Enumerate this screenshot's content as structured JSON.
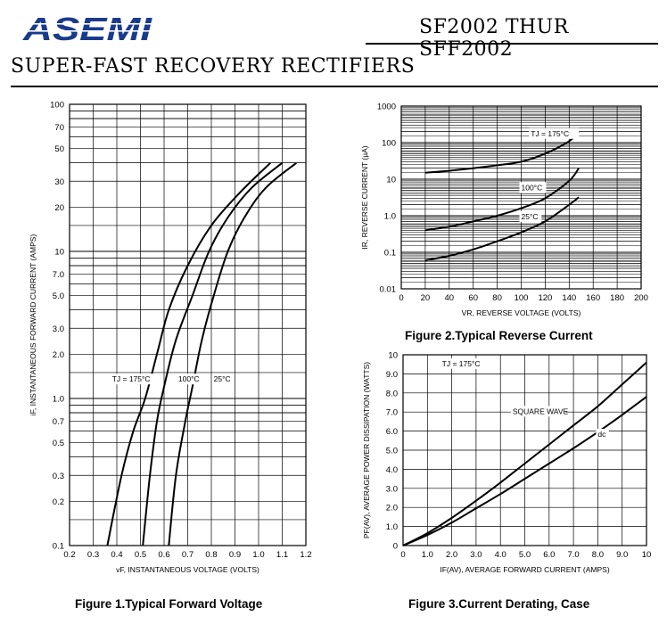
{
  "header": {
    "logo_text": "ASEMI",
    "part_range": "SF2002 THUR SFF2002",
    "subtitle": "SUPER-FAST RECOVERY RECTIFIERS"
  },
  "colors": {
    "logo": "#1a3a8c",
    "lines": "#000000"
  },
  "figures": {
    "fig1_caption": "Figure 1.Typical  Forward  Voltage",
    "fig2_caption": "Figure 2.Typical  Reverse  Current",
    "fig3_caption": "Figure 3.Current  Derating,  Case"
  },
  "chart_data": [
    {
      "type": "line",
      "scale": {
        "x": "linear",
        "y": "log"
      },
      "xlabel": "vF, INSTANTANEOUS VOLTAGE (VOLTS)",
      "ylabel": "iF, INSTANTANEOUS FORWARD CURRENT (AMPS)",
      "xlim": [
        0.2,
        1.2
      ],
      "ylim": [
        0.1,
        100
      ],
      "xticks": [
        "0.2",
        "0.3",
        "0.4",
        "0.5",
        "0.6",
        "0.7",
        "0.8",
        "0.9",
        "1.0",
        "1.1",
        "1.2"
      ],
      "yticks": [
        "0.1",
        "0.2",
        "0.3",
        "0.5",
        "0.7",
        "1.0",
        "2.0",
        "3.0",
        "5.0",
        "7.0",
        "10",
        "20",
        "30",
        "50",
        "70",
        "100"
      ],
      "grid": true,
      "series": [
        {
          "name": "TJ = 175°C",
          "points": [
            [
              0.36,
              0.1
            ],
            [
              0.42,
              0.3
            ],
            [
              0.47,
              0.6
            ],
            [
              0.52,
              1.0
            ],
            [
              0.57,
              2.0
            ],
            [
              0.62,
              4.0
            ],
            [
              0.7,
              8.0
            ],
            [
              0.8,
              15
            ],
            [
              0.92,
              25
            ],
            [
              1.05,
              40
            ]
          ]
        },
        {
          "name": "100°C",
          "points": [
            [
              0.51,
              0.1
            ],
            [
              0.54,
              0.3
            ],
            [
              0.57,
              0.7
            ],
            [
              0.6,
              1.2
            ],
            [
              0.65,
              2.5
            ],
            [
              0.72,
              5.0
            ],
            [
              0.79,
              10
            ],
            [
              0.87,
              17
            ],
            [
              0.97,
              27
            ],
            [
              1.1,
              40
            ]
          ]
        },
        {
          "name": "25°C",
          "points": [
            [
              0.62,
              0.1
            ],
            [
              0.65,
              0.3
            ],
            [
              0.69,
              0.7
            ],
            [
              0.72,
              1.2
            ],
            [
              0.76,
              2.5
            ],
            [
              0.81,
              5.0
            ],
            [
              0.87,
              10
            ],
            [
              0.94,
              17
            ],
            [
              1.03,
              27
            ],
            [
              1.16,
              40
            ]
          ]
        }
      ],
      "annotations": [
        {
          "text": "TJ = 175°C",
          "x": 0.38,
          "y": 1.3
        },
        {
          "text": "100°C",
          "x": 0.66,
          "y": 1.3
        },
        {
          "text": "25°C",
          "x": 0.81,
          "y": 1.3
        }
      ]
    },
    {
      "type": "line",
      "scale": {
        "x": "linear",
        "y": "log"
      },
      "xlabel": "VR, REVERSE VOLTAGE (VOLTS)",
      "ylabel": "IR, REVERSE CURRENT (µA)",
      "xlim": [
        0,
        200
      ],
      "ylim": [
        0.01,
        1000
      ],
      "xticks": [
        "0",
        "20",
        "40",
        "60",
        "80",
        "100",
        "120",
        "140",
        "160",
        "180",
        "200"
      ],
      "yticks": [
        "0.01",
        "0.1",
        "1.0",
        "10",
        "100",
        "1000"
      ],
      "grid": true,
      "series": [
        {
          "name": "TJ = 175°C",
          "points": [
            [
              20,
              15
            ],
            [
              40,
              17
            ],
            [
              60,
              20
            ],
            [
              80,
              24
            ],
            [
              100,
              30
            ],
            [
              120,
              50
            ],
            [
              140,
              110
            ],
            [
              148,
              200
            ]
          ]
        },
        {
          "name": "100°C",
          "points": [
            [
              20,
              0.4
            ],
            [
              40,
              0.5
            ],
            [
              60,
              0.7
            ],
            [
              80,
              1.0
            ],
            [
              100,
              1.6
            ],
            [
              120,
              3.0
            ],
            [
              140,
              9.0
            ],
            [
              148,
              20
            ]
          ]
        },
        {
          "name": "25°C",
          "points": [
            [
              20,
              0.06
            ],
            [
              40,
              0.08
            ],
            [
              60,
              0.12
            ],
            [
              80,
              0.2
            ],
            [
              100,
              0.35
            ],
            [
              120,
              0.7
            ],
            [
              140,
              2.0
            ],
            [
              148,
              3.2
            ]
          ]
        }
      ],
      "annotations": [
        {
          "text": "TJ = 175°C",
          "x": 108,
          "y": 150
        },
        {
          "text": "100°C",
          "x": 100,
          "y": 5
        },
        {
          "text": "25°C",
          "x": 100,
          "y": 0.8
        }
      ]
    },
    {
      "type": "line",
      "scale": {
        "x": "linear",
        "y": "linear"
      },
      "xlabel": "IF(AV), AVERAGE FORWARD CURRENT (AMPS)",
      "ylabel": "PF(AV), AVERAGE POWER DISSIPATION (WATTS)",
      "xlim": [
        0,
        10
      ],
      "ylim": [
        0,
        10
      ],
      "xticks": [
        "0",
        "1.0",
        "2.0",
        "3.0",
        "4.0",
        "5.0",
        "6.0",
        "7.0",
        "8.0",
        "9.0",
        "10"
      ],
      "yticks": [
        "0",
        "1.0",
        "2.0",
        "3.0",
        "4.0",
        "5.0",
        "6.0",
        "7.0",
        "8.0",
        "9.0",
        "10"
      ],
      "grid": true,
      "series": [
        {
          "name": "SQUARE WAVE",
          "points": [
            [
              0,
              0
            ],
            [
              1,
              0.65
            ],
            [
              2,
              1.45
            ],
            [
              3,
              2.35
            ],
            [
              4,
              3.3
            ],
            [
              5,
              4.3
            ],
            [
              6,
              5.3
            ],
            [
              7,
              6.3
            ],
            [
              8,
              7.3
            ],
            [
              9,
              8.45
            ],
            [
              10,
              9.6
            ]
          ]
        },
        {
          "name": "dc",
          "points": [
            [
              0,
              0
            ],
            [
              1,
              0.55
            ],
            [
              2,
              1.2
            ],
            [
              3,
              1.95
            ],
            [
              4,
              2.7
            ],
            [
              5,
              3.5
            ],
            [
              6,
              4.3
            ],
            [
              7,
              5.1
            ],
            [
              8,
              5.95
            ],
            [
              9,
              6.85
            ],
            [
              10,
              7.8
            ]
          ]
        }
      ],
      "annotations": [
        {
          "text": "TJ = 175°C",
          "x": 1.6,
          "y": 9.4
        },
        {
          "text": "SQUARE WAVE",
          "x": 4.5,
          "y": 6.9
        },
        {
          "text": "dc",
          "x": 8.0,
          "y": 5.7
        }
      ]
    }
  ]
}
